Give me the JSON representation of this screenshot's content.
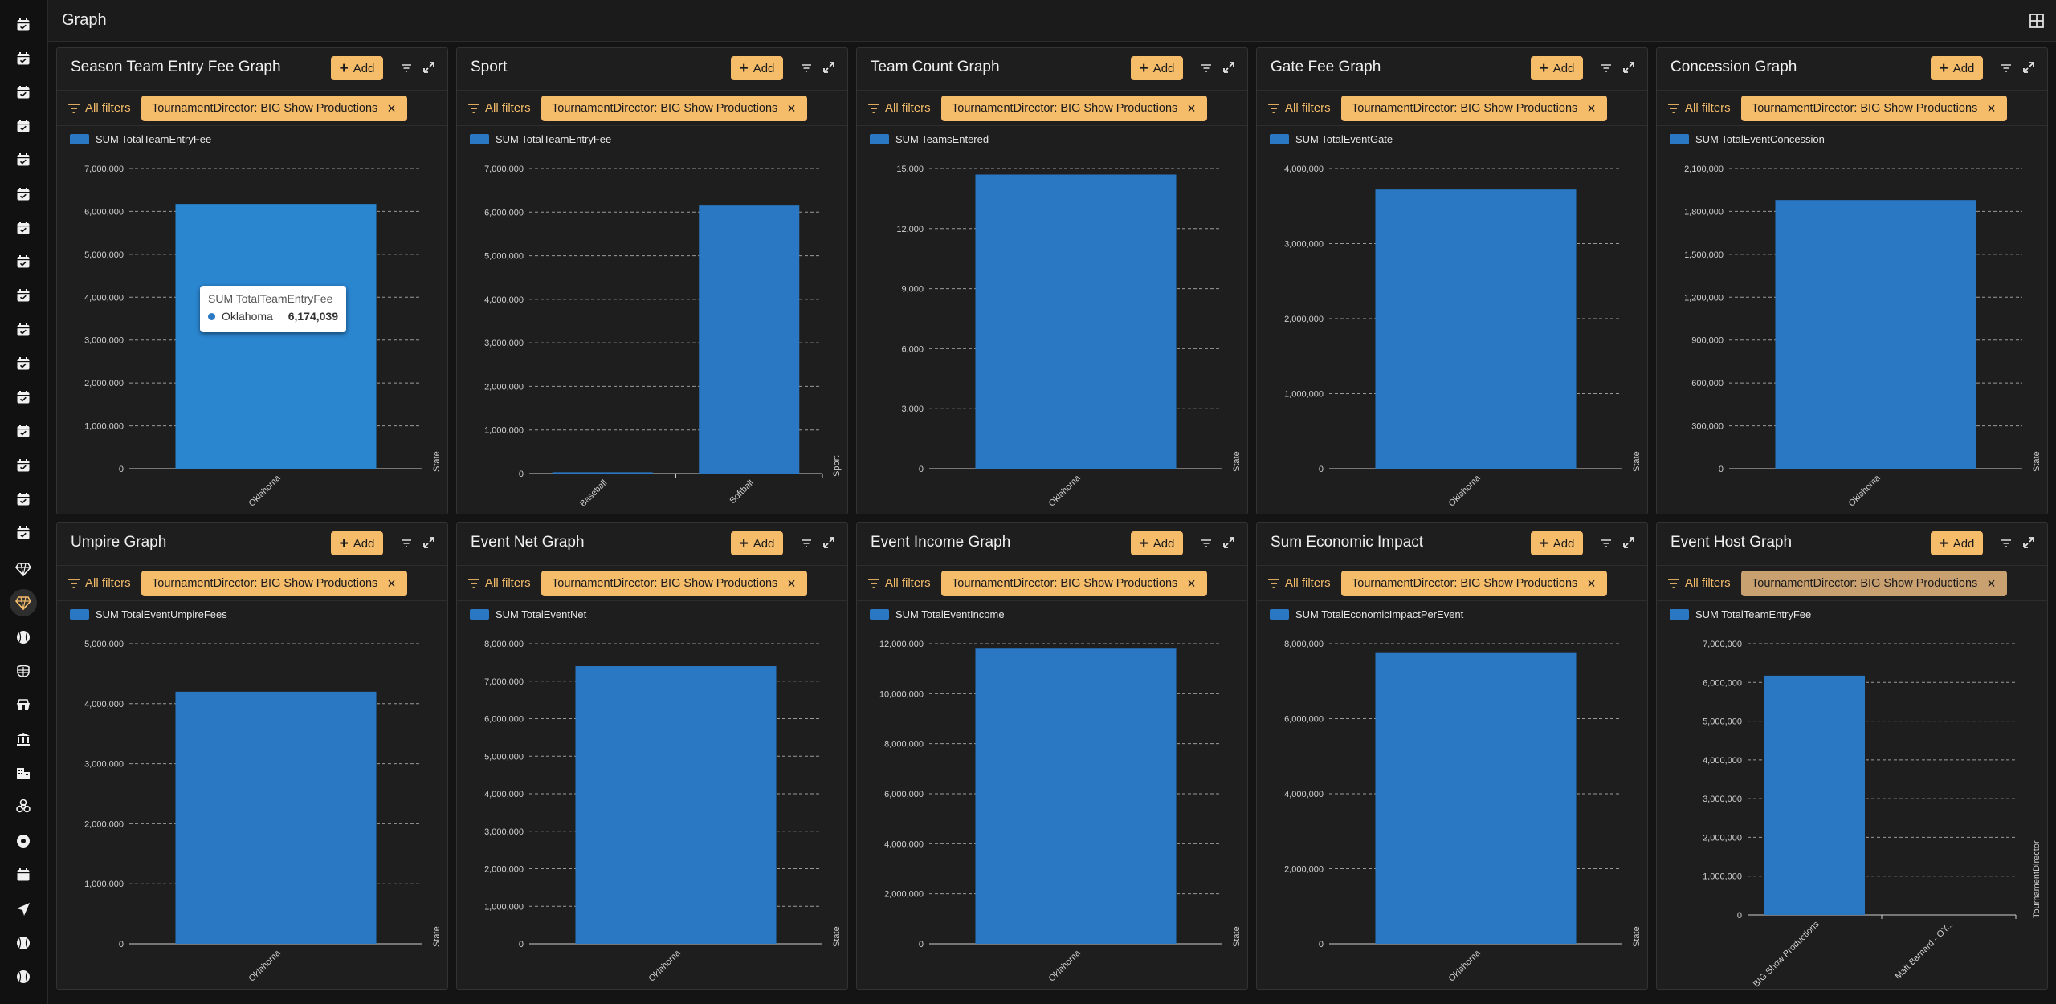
{
  "page": {
    "title": "Graph"
  },
  "colors": {
    "accent": "#f5bc6a",
    "bar": "#2a78c4",
    "background": "#141414",
    "panel": "#1e1e1e"
  },
  "sidebar": {
    "items": [
      {
        "icon": "calendar-check-icon"
      },
      {
        "icon": "calendar-check-icon"
      },
      {
        "icon": "calendar-check-icon"
      },
      {
        "icon": "calendar-check-icon"
      },
      {
        "icon": "calendar-check-icon"
      },
      {
        "icon": "calendar-check-icon"
      },
      {
        "icon": "calendar-check-icon"
      },
      {
        "icon": "calendar-check-icon"
      },
      {
        "icon": "calendar-check-icon"
      },
      {
        "icon": "calendar-check-icon"
      },
      {
        "icon": "calendar-check-icon"
      },
      {
        "icon": "calendar-check-icon"
      },
      {
        "icon": "calendar-check-icon"
      },
      {
        "icon": "calendar-check-icon"
      },
      {
        "icon": "calendar-check-icon"
      },
      {
        "icon": "calendar-check-icon"
      },
      {
        "icon": "diamond-icon"
      },
      {
        "icon": "diamond-icon",
        "active": true
      },
      {
        "icon": "baseball-icon"
      },
      {
        "icon": "mask-icon"
      },
      {
        "icon": "stadium-icon"
      },
      {
        "icon": "bank-icon"
      },
      {
        "icon": "building-icon"
      },
      {
        "icon": "biohazard-icon"
      },
      {
        "icon": "ball-icon"
      },
      {
        "icon": "calendar-icon"
      },
      {
        "icon": "navigation-icon"
      },
      {
        "icon": "baseball-icon"
      },
      {
        "icon": "baseball-icon"
      },
      {
        "icon": "plus-icon"
      }
    ]
  },
  "common": {
    "add_label": "Add",
    "all_filters_label": "All filters",
    "filter_chip": "TournamentDirector: BIG Show Productions",
    "chip_close": "×"
  },
  "cards": [
    {
      "title": "Season Team Entry Fee Graph",
      "legend": "SUM TotalTeamEntryFee"
    },
    {
      "title": "Sport",
      "legend": "SUM TotalTeamEntryFee"
    },
    {
      "title": "Team Count Graph",
      "legend": "SUM TeamsEntered"
    },
    {
      "title": "Gate Fee Graph",
      "legend": "SUM TotalEventGate"
    },
    {
      "title": "Concession Graph",
      "legend": "SUM TotalEventConcession"
    },
    {
      "title": "Umpire Graph",
      "legend": "SUM TotalEventUmpireFees"
    },
    {
      "title": "Event Net Graph",
      "legend": "SUM TotalEventNet"
    },
    {
      "title": "Event Income Graph",
      "legend": "SUM TotalEventIncome"
    },
    {
      "title": "Sum Economic Impact",
      "legend": "SUM TotalEconomicImpactPerEvent"
    },
    {
      "title": "Event Host Graph",
      "legend": "SUM TotalTeamEntryFee",
      "chip_muted": true
    }
  ],
  "tooltip": {
    "title": "SUM TotalTeamEntryFee",
    "label": "Oklahoma",
    "value": "6,174,039"
  },
  "chart_data": [
    {
      "type": "bar",
      "categories": [
        "Oklahoma"
      ],
      "values": [
        6174039
      ],
      "xlabel": "State",
      "ylim": [
        0,
        7000000
      ],
      "yticks": [
        "0",
        "1,000,000",
        "2,000,000",
        "3,000,000",
        "4,000,000",
        "5,000,000",
        "6,000,000",
        "7,000,000"
      ],
      "grid": true,
      "legend": "top-left"
    },
    {
      "type": "bar",
      "categories": [
        "Baseball",
        "Softball"
      ],
      "values": [
        30000,
        6150000
      ],
      "xlabel": "Sport",
      "ylim": [
        0,
        7000000
      ],
      "yticks": [
        "0",
        "1,000,000",
        "2,000,000",
        "3,000,000",
        "4,000,000",
        "5,000,000",
        "6,000,000",
        "7,000,000"
      ],
      "grid": true,
      "legend": "top-left"
    },
    {
      "type": "bar",
      "categories": [
        "Oklahoma"
      ],
      "values": [
        14700
      ],
      "xlabel": "State",
      "ylim": [
        0,
        15000
      ],
      "yticks": [
        "0",
        "3,000",
        "6,000",
        "9,000",
        "12,000",
        "15,000"
      ],
      "grid": true,
      "legend": "top-left"
    },
    {
      "type": "bar",
      "categories": [
        "Oklahoma"
      ],
      "values": [
        3720000
      ],
      "xlabel": "State",
      "ylim": [
        0,
        4000000
      ],
      "yticks": [
        "0",
        "1,000,000",
        "2,000,000",
        "3,000,000",
        "4,000,000"
      ],
      "grid": true,
      "legend": "top-left"
    },
    {
      "type": "bar",
      "categories": [
        "Oklahoma"
      ],
      "values": [
        1880000
      ],
      "xlabel": "State",
      "ylim": [
        0,
        2100000
      ],
      "yticks": [
        "0",
        "300,000",
        "600,000",
        "900,000",
        "1,200,000",
        "1,500,000",
        "1,800,000",
        "2,100,000"
      ],
      "grid": true,
      "legend": "top-left"
    },
    {
      "type": "bar",
      "categories": [
        "Oklahoma"
      ],
      "values": [
        4200000
      ],
      "xlabel": "State",
      "ylim": [
        0,
        5000000
      ],
      "yticks": [
        "0",
        "1,000,000",
        "2,000,000",
        "3,000,000",
        "4,000,000",
        "5,000,000"
      ],
      "grid": true,
      "legend": "top-left"
    },
    {
      "type": "bar",
      "categories": [
        "Oklahoma"
      ],
      "values": [
        7400000
      ],
      "xlabel": "State",
      "ylim": [
        0,
        8000000
      ],
      "yticks": [
        "0",
        "1,000,000",
        "2,000,000",
        "3,000,000",
        "4,000,000",
        "5,000,000",
        "6,000,000",
        "7,000,000",
        "8,000,000"
      ],
      "grid": true,
      "legend": "top-left"
    },
    {
      "type": "bar",
      "categories": [
        "Oklahoma"
      ],
      "values": [
        11800000
      ],
      "xlabel": "State",
      "ylim": [
        0,
        12000000
      ],
      "yticks": [
        "0",
        "2,000,000",
        "4,000,000",
        "6,000,000",
        "8,000,000",
        "10,000,000",
        "12,000,000"
      ],
      "grid": true,
      "legend": "top-left"
    },
    {
      "type": "bar",
      "categories": [
        "Oklahoma"
      ],
      "values": [
        7750000
      ],
      "xlabel": "State",
      "ylim": [
        0,
        8000000
      ],
      "yticks": [
        "0",
        "2,000,000",
        "4,000,000",
        "6,000,000",
        "8,000,000"
      ],
      "grid": true,
      "legend": "top-left"
    },
    {
      "type": "bar",
      "categories": [
        "BIG Show Productions",
        "Matt Barnard - OY..."
      ],
      "values": [
        6174039,
        0
      ],
      "xlabel": "TournamentDirector",
      "ylim": [
        0,
        7000000
      ],
      "yticks": [
        "0",
        "1,000,000",
        "2,000,000",
        "3,000,000",
        "4,000,000",
        "5,000,000",
        "6,000,000",
        "7,000,000"
      ],
      "grid": true,
      "legend": "top-left"
    }
  ]
}
